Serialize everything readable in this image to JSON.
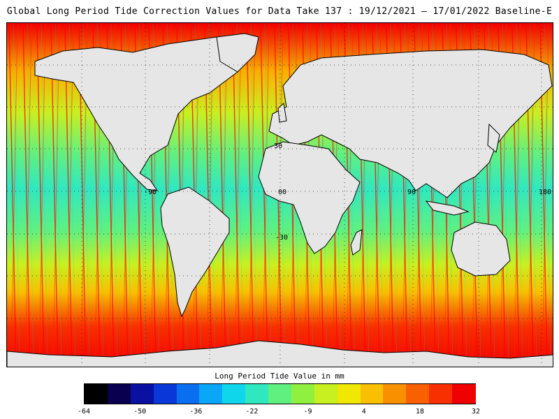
{
  "title": "Global Long Period Tide Correction Values for Data Take 137 : 19/12/2021 — 17/01/2022 Baseline-E",
  "map": {
    "projection": "equirectangular",
    "lat_labels": [
      "30",
      "0",
      "-30"
    ],
    "lon_labels": [
      "-90",
      "0",
      "90",
      "180"
    ],
    "land_color": "#e6e6e6",
    "coastline_color": "#000000",
    "grid_style": "dotted"
  },
  "colorbar": {
    "title": "Long Period Tide Value in mm",
    "tick_labels": [
      "-64",
      "-50",
      "-36",
      "-22",
      "-9",
      "4",
      "18",
      "32"
    ],
    "colors": [
      "#000000",
      "#0a0050",
      "#0a10a0",
      "#0a38d8",
      "#0a6ef0",
      "#0aa6f8",
      "#10d6ec",
      "#30e8c0",
      "#60f080",
      "#90f040",
      "#c8f020",
      "#f0e800",
      "#f8c000",
      "#f89000",
      "#f86000",
      "#f83000",
      "#f00000"
    ]
  }
}
